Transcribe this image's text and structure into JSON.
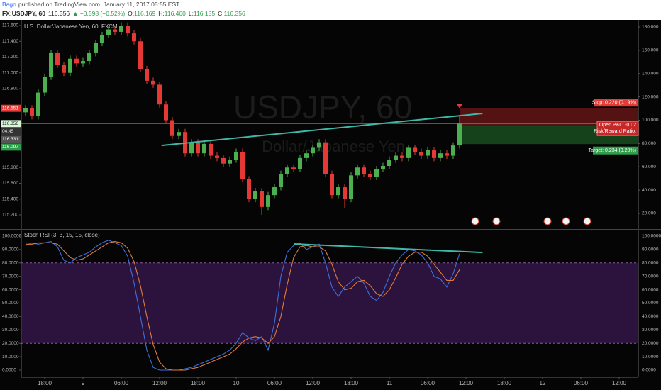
{
  "header": {
    "author": "Bago",
    "published": "published on TradingView.com, January 11, 2017 05:55 EST",
    "symbol": "FX:USDJPY, 60",
    "last": "116.356",
    "change": "▲ +0.598 (+0.52%)",
    "ohlc": [
      {
        "label": "O:",
        "value": "116.169"
      },
      {
        "label": "H:",
        "value": "116.460"
      },
      {
        "label": "L:",
        "value": "116.155"
      },
      {
        "label": "C:",
        "value": "116.356"
      }
    ]
  },
  "chart_data": [
    {
      "type": "candlestick",
      "title": "U.S. Dollar/Japanese Yen, 60, FXCM",
      "watermark": "USDJPY, 60",
      "watermark_subtitle": "Dollar/Japanese Yen",
      "up_color": "#4caf50",
      "down_color": "#e53935",
      "x": [
        -9,
        -8,
        -7,
        -6,
        -5,
        -4,
        -3,
        -2,
        -1,
        0,
        1,
        2,
        3,
        4,
        5,
        6,
        7,
        8,
        9,
        10,
        11,
        12,
        13,
        14,
        15,
        16,
        17,
        18,
        19,
        20,
        21,
        22,
        23,
        24,
        25,
        26,
        27,
        28,
        29,
        30,
        31,
        32,
        33,
        34,
        35,
        36,
        37,
        38,
        39,
        40,
        41,
        42,
        43,
        44,
        45,
        46,
        47,
        48,
        49,
        50,
        51,
        52,
        53,
        54,
        55,
        56,
        57,
        58,
        59
      ],
      "open": [
        116.5,
        116.55,
        116.45,
        116.75,
        116.95,
        117.25,
        117.1,
        117.0,
        117.18,
        117.12,
        117.15,
        117.25,
        117.38,
        117.48,
        117.55,
        117.52,
        117.6,
        117.5,
        117.4,
        117.05,
        116.9,
        116.85,
        116.6,
        116.4,
        116.2,
        116.25,
        115.98,
        116.12,
        115.98,
        116.1,
        115.95,
        115.92,
        115.85,
        115.9,
        116.0,
        115.65,
        115.4,
        115.5,
        115.3,
        115.45,
        115.55,
        115.72,
        115.8,
        115.78,
        115.92,
        115.98,
        116.05,
        116.12,
        115.72,
        115.45,
        115.55,
        115.4,
        115.7,
        115.8,
        115.72,
        115.68,
        115.78,
        115.82,
        115.9,
        115.95,
        115.92,
        116.05,
        116.0,
        115.95,
        116.02,
        115.92,
        115.98,
        115.95,
        116.08
      ],
      "high": [
        116.59,
        116.59,
        116.79,
        116.99,
        117.29,
        117.29,
        117.14,
        117.22,
        117.22,
        117.19,
        117.29,
        117.42,
        117.52,
        117.59,
        117.59,
        117.64,
        117.64,
        117.54,
        117.44,
        117.09,
        116.94,
        116.89,
        116.64,
        116.44,
        116.29,
        116.29,
        116.16,
        116.16,
        116.14,
        116.14,
        115.99,
        115.96,
        115.94,
        116.04,
        116.04,
        115.69,
        115.54,
        115.54,
        115.49,
        115.59,
        115.76,
        115.84,
        115.84,
        115.96,
        116.02,
        116.09,
        116.16,
        116.16,
        115.76,
        115.59,
        115.59,
        115.74,
        115.84,
        115.84,
        115.76,
        115.82,
        115.86,
        115.94,
        115.99,
        115.99,
        116.09,
        116.09,
        116.04,
        116.06,
        116.06,
        116.02,
        116.02,
        116.12,
        116.46
      ],
      "low": [
        116.46,
        116.41,
        116.41,
        116.71,
        116.91,
        117.06,
        116.96,
        116.96,
        117.08,
        117.08,
        117.11,
        117.21,
        117.34,
        117.44,
        117.48,
        117.48,
        117.46,
        117.36,
        117.01,
        116.86,
        116.81,
        116.56,
        116.36,
        116.16,
        116.16,
        115.94,
        115.94,
        115.94,
        115.94,
        115.91,
        115.88,
        115.81,
        115.81,
        115.86,
        115.61,
        115.36,
        115.36,
        115.2,
        115.26,
        115.41,
        115.51,
        115.68,
        115.74,
        115.74,
        115.88,
        115.94,
        116.01,
        115.68,
        115.41,
        115.41,
        115.28,
        115.36,
        115.66,
        115.68,
        115.64,
        115.64,
        115.74,
        115.78,
        115.86,
        115.88,
        115.88,
        115.96,
        115.91,
        115.91,
        115.88,
        115.88,
        115.91,
        115.91,
        116.04
      ],
      "close": [
        116.55,
        116.45,
        116.75,
        116.95,
        117.25,
        117.1,
        117.0,
        117.18,
        117.12,
        117.15,
        117.25,
        117.38,
        117.48,
        117.55,
        117.52,
        117.6,
        117.5,
        117.4,
        117.05,
        116.9,
        116.85,
        116.6,
        116.4,
        116.2,
        116.25,
        115.98,
        116.12,
        115.98,
        116.1,
        115.95,
        115.92,
        115.85,
        115.9,
        116.0,
        115.65,
        115.4,
        115.5,
        115.3,
        115.45,
        115.55,
        115.72,
        115.8,
        115.78,
        115.92,
        115.98,
        116.05,
        116.12,
        115.72,
        115.45,
        115.55,
        115.4,
        115.7,
        115.8,
        115.72,
        115.68,
        115.78,
        115.82,
        115.9,
        115.95,
        115.92,
        116.05,
        116.0,
        115.95,
        116.02,
        115.92,
        115.98,
        115.95,
        116.08,
        116.356
      ],
      "xlim": [
        -9.667,
        87
      ],
      "xticks": [
        {
          "value": -6,
          "label": "18:00"
        },
        {
          "value": 0,
          "label": "9"
        },
        {
          "value": 6,
          "label": "06:00"
        },
        {
          "value": 12,
          "label": "12:00"
        },
        {
          "value": 18,
          "label": "18:00"
        },
        {
          "value": 24,
          "label": "10"
        },
        {
          "value": 30,
          "label": "06:00"
        },
        {
          "value": 36,
          "label": "12:00"
        },
        {
          "value": 42,
          "label": "18:00"
        },
        {
          "value": 48,
          "label": "11"
        },
        {
          "value": 54,
          "label": "06:00"
        },
        {
          "value": 60,
          "label": "12:00"
        },
        {
          "value": 66,
          "label": "18:00"
        },
        {
          "value": 72,
          "label": "12"
        },
        {
          "value": 78,
          "label": "06:00"
        },
        {
          "value": 84,
          "label": "12:00"
        }
      ],
      "ylim": [
        115.029,
        117.672
      ],
      "yticks": [
        {
          "value": 117.6,
          "label": "117.600"
        },
        {
          "value": 117.4,
          "label": "117.400"
        },
        {
          "value": 117.2,
          "label": "117.200"
        },
        {
          "value": 117.0,
          "label": "117.000"
        },
        {
          "value": 116.8,
          "label": "116.800"
        },
        {
          "value": 115.8,
          "label": "115.800"
        },
        {
          "value": 115.6,
          "label": "115.600"
        },
        {
          "value": 115.4,
          "label": "115.400"
        },
        {
          "value": 115.2,
          "label": "115.200"
        }
      ],
      "y2lim": [
        7.23,
        186.08
      ],
      "y2ticks": [
        {
          "value": 180,
          "label": "180.000"
        },
        {
          "value": 160,
          "label": "160.000"
        },
        {
          "value": 140,
          "label": "140.000"
        },
        {
          "value": 120,
          "label": "120.000"
        },
        {
          "value": 100,
          "label": "100.000"
        },
        {
          "value": 80,
          "label": "80.000"
        },
        {
          "value": 60,
          "label": "60.000"
        },
        {
          "value": 40,
          "label": "40.000"
        },
        {
          "value": 20,
          "label": "20.000"
        }
      ],
      "trendline": {
        "x": [
          12.3,
          62.6
        ],
        "y": [
          116.08,
          116.485
        ],
        "color": "#3fb8a8"
      },
      "last_price": 116.356,
      "countdown": "04:45",
      "position": {
        "entry": 116.331,
        "stop": 116.551,
        "target": 116.097,
        "stop_label": "Stop: 0.220 (0.19%)",
        "pl_label": "Open P&L: -0.02",
        "ratio_label": "Risk/Reward Ratio:",
        "target_label": "Target: 0.234 (0.20%)"
      }
    },
    {
      "type": "line",
      "title": "Stoch RSI (3, 3, 15, 15, close)",
      "series": [
        {
          "color": "#3f6fd8",
          "values": [
            93,
            95,
            94,
            95,
            96,
            92,
            82,
            80,
            84,
            86,
            88,
            92,
            95,
            97,
            95,
            93,
            85,
            65,
            40,
            15,
            2,
            0,
            0,
            0,
            0,
            1,
            2,
            4,
            6,
            8,
            10,
            12,
            15,
            20,
            28,
            24,
            22,
            25,
            15,
            35,
            70,
            88,
            93,
            95,
            90,
            92,
            94,
            80,
            62,
            55,
            62,
            66,
            70,
            65,
            55,
            52,
            58,
            70,
            80,
            86,
            90,
            89,
            86,
            80,
            70,
            68,
            62,
            72,
            87
          ]
        },
        {
          "color": "#e07b39",
          "values": [
            94,
            94,
            95,
            95,
            95,
            94,
            89,
            84,
            82,
            83,
            86,
            89,
            92,
            95,
            96,
            95,
            91,
            81,
            63,
            40,
            19,
            6,
            1,
            0,
            0,
            0,
            1,
            2,
            4,
            6,
            8,
            10,
            12,
            16,
            21,
            24,
            25,
            24,
            20,
            25,
            40,
            64,
            84,
            92,
            93,
            92,
            92,
            89,
            79,
            66,
            60,
            61,
            66,
            67,
            63,
            57,
            55,
            60,
            69,
            79,
            85,
            88,
            88,
            85,
            79,
            73,
            67,
            67,
            75
          ]
        }
      ],
      "ylim": [
        -5.29,
        104.23
      ],
      "yticks": [
        {
          "value": 100,
          "label": "100.0000"
        },
        {
          "value": 90,
          "label": "90.0000"
        },
        {
          "value": 80,
          "label": "80.0000"
        },
        {
          "value": 70,
          "label": "70.0000"
        },
        {
          "value": 60,
          "label": "60.0000"
        },
        {
          "value": 50,
          "label": "50.0000"
        },
        {
          "value": 40,
          "label": "40.0000"
        },
        {
          "value": 30,
          "label": "30.0000"
        },
        {
          "value": 20,
          "label": "20.0000"
        },
        {
          "value": 10,
          "label": "10.0000"
        },
        {
          "value": 0,
          "label": "0.0000"
        }
      ],
      "bands": [
        20,
        80
      ],
      "band_color": "#4a1f6e",
      "trendline": {
        "x": [
          33.1,
          62.6
        ],
        "y": [
          94.2,
          87.8
        ],
        "color": "#3fb8a8"
      }
    }
  ]
}
